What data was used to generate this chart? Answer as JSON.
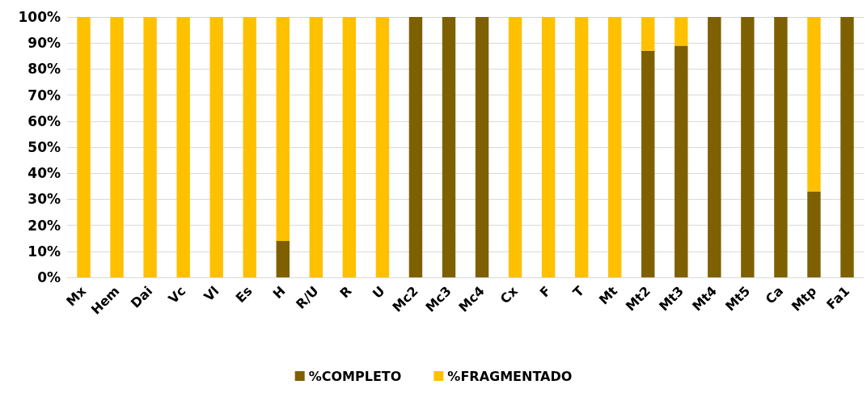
{
  "chart_data": {
    "type": "bar",
    "stacked": true,
    "categories": [
      "Mx",
      "Hem",
      "Dai",
      "Vc",
      "Vl",
      "Es",
      "H",
      "R/U",
      "R",
      "U",
      "Mc2",
      "Mc3",
      "Mc4",
      "Cx",
      "F",
      "T",
      "Mt",
      "Mt2",
      "Mt3",
      "Mt4",
      "Mt5",
      "Ca",
      "Mtp",
      "Fa1"
    ],
    "series": [
      {
        "name": "%COMPLETO",
        "color": "#7f6000",
        "values": [
          0,
          0,
          0,
          0,
          0,
          0,
          14,
          0,
          0,
          0,
          100,
          100,
          100,
          0,
          0,
          0,
          0,
          87,
          89,
          100,
          100,
          100,
          33,
          100
        ]
      },
      {
        "name": "%FRAGMENTADO",
        "color": "#ffc000",
        "values": [
          100,
          100,
          100,
          100,
          100,
          100,
          86,
          100,
          100,
          100,
          0,
          0,
          0,
          100,
          100,
          100,
          100,
          13,
          11,
          0,
          0,
          0,
          67,
          0
        ]
      }
    ],
    "ylim": [
      0,
      100
    ],
    "yticks": [
      {
        "value": 0,
        "label": "0%"
      },
      {
        "value": 10,
        "label": "10%"
      },
      {
        "value": 20,
        "label": "20%"
      },
      {
        "value": 30,
        "label": "30%"
      },
      {
        "value": 40,
        "label": "40%"
      },
      {
        "value": 50,
        "label": "50%"
      },
      {
        "value": 60,
        "label": "60%"
      },
      {
        "value": 70,
        "label": "70%"
      },
      {
        "value": 80,
        "label": "80%"
      },
      {
        "value": 90,
        "label": "90%"
      },
      {
        "value": 100,
        "label": "100%"
      }
    ],
    "grid": "y",
    "legend": "bottom"
  }
}
